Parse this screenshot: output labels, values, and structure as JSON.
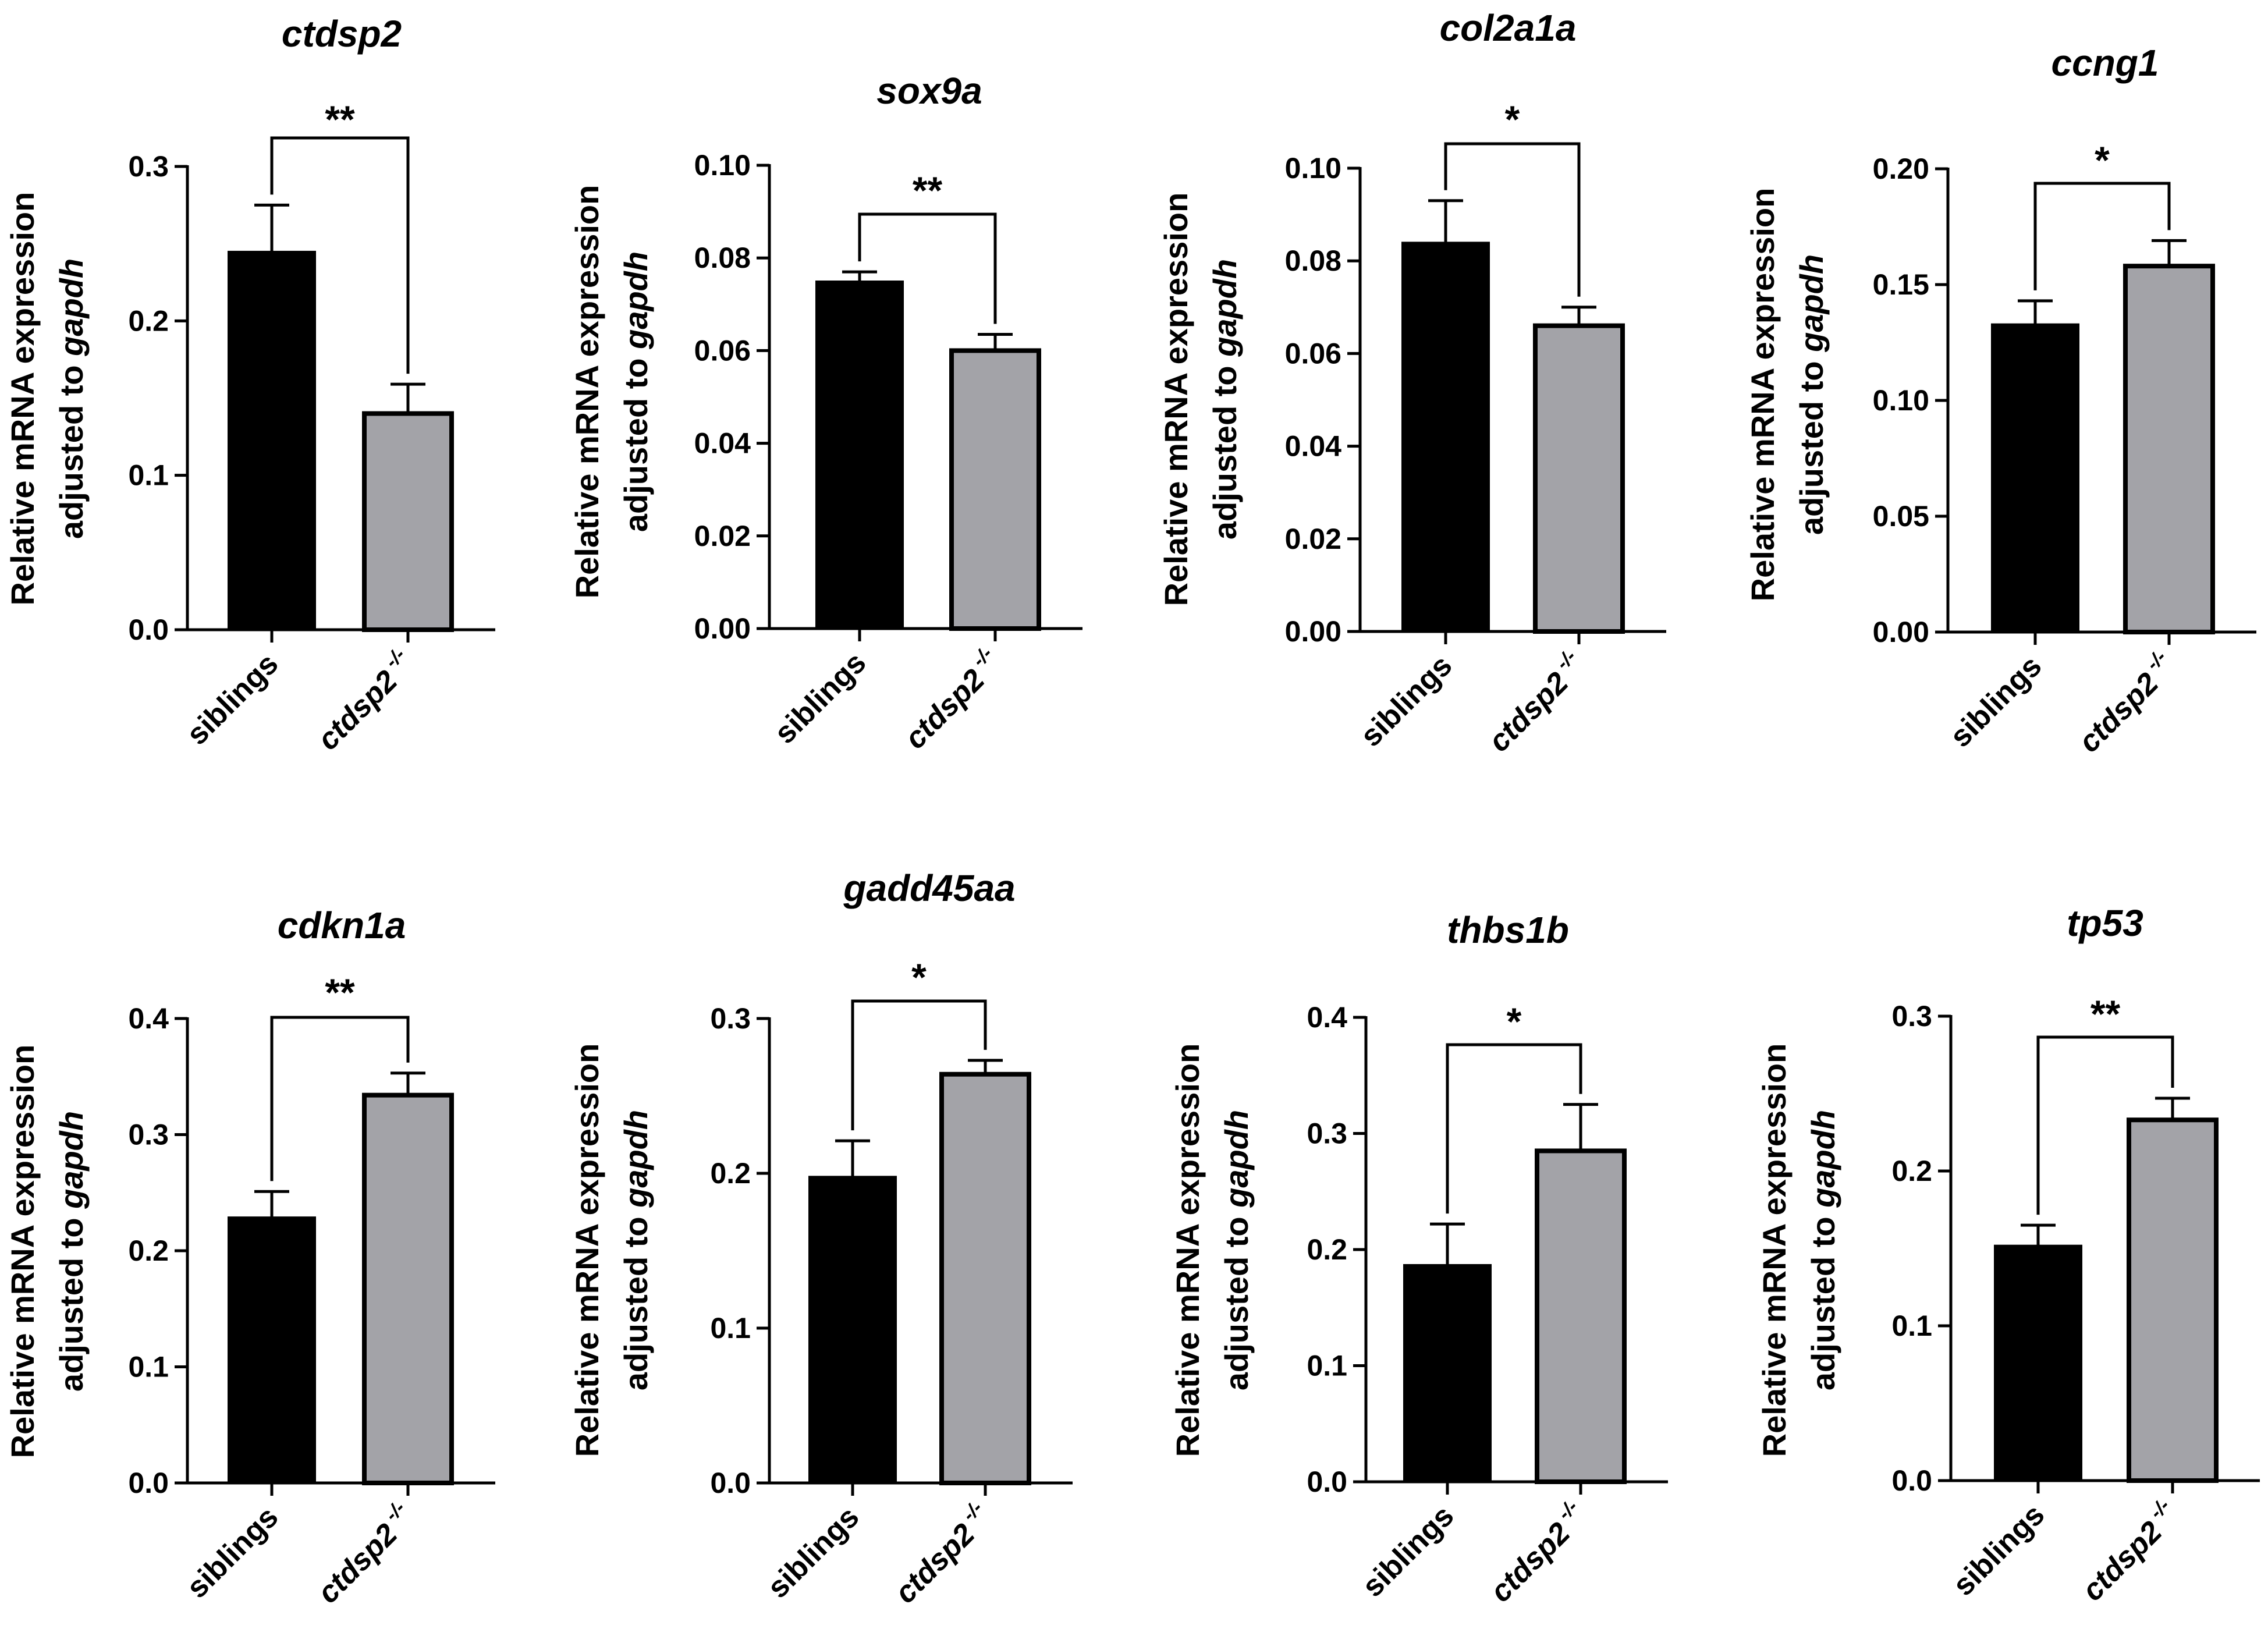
{
  "chart_data": [
    {
      "type": "bar",
      "title": "ctdsp2",
      "categories": [
        "siblings",
        "ctdsp2"
      ],
      "category_superscript": [
        "",
        "-/-"
      ],
      "ylabel": {
        "line1": "Relative mRNA expression",
        "line2_prefix": "adjusted to ",
        "line2_gene": "gapdh"
      },
      "ylim": [
        0,
        0.3
      ],
      "yticks": [
        "0.0",
        "0.1",
        "0.2",
        "0.3"
      ],
      "values": [
        0.245,
        0.14
      ],
      "errors": [
        0.03,
        0.019
      ],
      "significance": "**",
      "colors": [
        "#000000",
        "#a3a3a8"
      ]
    },
    {
      "type": "bar",
      "title": "sox9a",
      "categories": [
        "siblings",
        "ctdsp2"
      ],
      "category_superscript": [
        "",
        "-/-"
      ],
      "ylabel": {
        "line1": "Relative mRNA expression",
        "line2_prefix": "adjusted to ",
        "line2_gene": "gapdh"
      },
      "ylim": [
        0,
        0.1
      ],
      "yticks": [
        "0.00",
        "0.02",
        "0.04",
        "0.06",
        "0.08",
        "0.10"
      ],
      "values": [
        0.075,
        0.06
      ],
      "errors": [
        0.002,
        0.0035
      ],
      "significance": "**",
      "colors": [
        "#000000",
        "#a3a3a8"
      ]
    },
    {
      "type": "bar",
      "title": "col2a1a",
      "categories": [
        "siblings",
        "ctdsp2"
      ],
      "category_superscript": [
        "",
        "-/-"
      ],
      "ylabel": {
        "line1": "Relative mRNA expression",
        "line2_prefix": "adjusted to ",
        "line2_gene": "gapdh"
      },
      "ylim": [
        0,
        0.1
      ],
      "yticks": [
        "0.00",
        "0.02",
        "0.04",
        "0.06",
        "0.08",
        "0.10"
      ],
      "values": [
        0.084,
        0.066
      ],
      "errors": [
        0.009,
        0.004
      ],
      "significance": "*",
      "colors": [
        "#000000",
        "#a3a3a8"
      ]
    },
    {
      "type": "bar",
      "title": "ccng1",
      "categories": [
        "siblings",
        "ctdsp2"
      ],
      "category_superscript": [
        "",
        "-/-"
      ],
      "ylabel": {
        "line1": "Relative mRNA expression",
        "line2_prefix": "adjusted to ",
        "line2_gene": "gapdh"
      },
      "ylim": [
        0,
        0.2
      ],
      "yticks": [
        "0.00",
        "0.05",
        "0.10",
        "0.15",
        "0.20"
      ],
      "values": [
        0.133,
        0.158
      ],
      "errors": [
        0.01,
        0.011
      ],
      "significance": "*",
      "colors": [
        "#000000",
        "#a3a3a8"
      ]
    },
    {
      "type": "bar",
      "title": "cdkn1a",
      "categories": [
        "siblings",
        "ctdsp2"
      ],
      "category_superscript": [
        "",
        "-/-"
      ],
      "ylabel": {
        "line1": "Relative mRNA expression",
        "line2_prefix": "adjusted to ",
        "line2_gene": "gapdh"
      },
      "ylim": [
        0,
        0.4
      ],
      "yticks": [
        "0.0",
        "0.1",
        "0.2",
        "0.3",
        "0.4"
      ],
      "values": [
        0.229,
        0.334
      ],
      "errors": [
        0.022,
        0.019
      ],
      "significance": "**",
      "colors": [
        "#000000",
        "#a3a3a8"
      ]
    },
    {
      "type": "bar",
      "title": "gadd45aa",
      "categories": [
        "siblings",
        "ctdsp2"
      ],
      "category_superscript": [
        "",
        "-/-"
      ],
      "ylabel": {
        "line1": "Relative mRNA expression",
        "line2_prefix": "adjusted to ",
        "line2_gene": "gapdh"
      },
      "ylim": [
        0,
        0.3
      ],
      "yticks": [
        "0.0",
        "0.1",
        "0.2",
        "0.3"
      ],
      "values": [
        0.198,
        0.264
      ],
      "errors": [
        0.023,
        0.009
      ],
      "significance": "*",
      "colors": [
        "#000000",
        "#a3a3a8"
      ]
    },
    {
      "type": "bar",
      "title": "thbs1b",
      "categories": [
        "siblings",
        "ctdsp2"
      ],
      "category_superscript": [
        "",
        "-/-"
      ],
      "ylabel": {
        "line1": "Relative mRNA expression",
        "line2_prefix": "adjusted to ",
        "line2_gene": "gapdh"
      },
      "ylim": [
        0,
        0.4
      ],
      "yticks": [
        "0.0",
        "0.1",
        "0.2",
        "0.3",
        "0.4"
      ],
      "values": [
        0.187,
        0.285
      ],
      "errors": [
        0.035,
        0.04
      ],
      "significance": "*",
      "colors": [
        "#000000",
        "#a3a3a8"
      ]
    },
    {
      "type": "bar",
      "title": "tp53",
      "categories": [
        "siblings",
        "ctdsp2"
      ],
      "category_superscript": [
        "",
        "-/-"
      ],
      "ylabel": {
        "line1": "Relative mRNA expression",
        "line2_prefix": "adjusted to ",
        "line2_gene": "gapdh"
      },
      "ylim": [
        0,
        0.3
      ],
      "yticks": [
        "0.0",
        "0.1",
        "0.2",
        "0.3"
      ],
      "values": [
        0.152,
        0.233
      ],
      "errors": [
        0.013,
        0.014
      ],
      "significance": "**",
      "colors": [
        "#000000",
        "#a3a3a8"
      ]
    }
  ]
}
